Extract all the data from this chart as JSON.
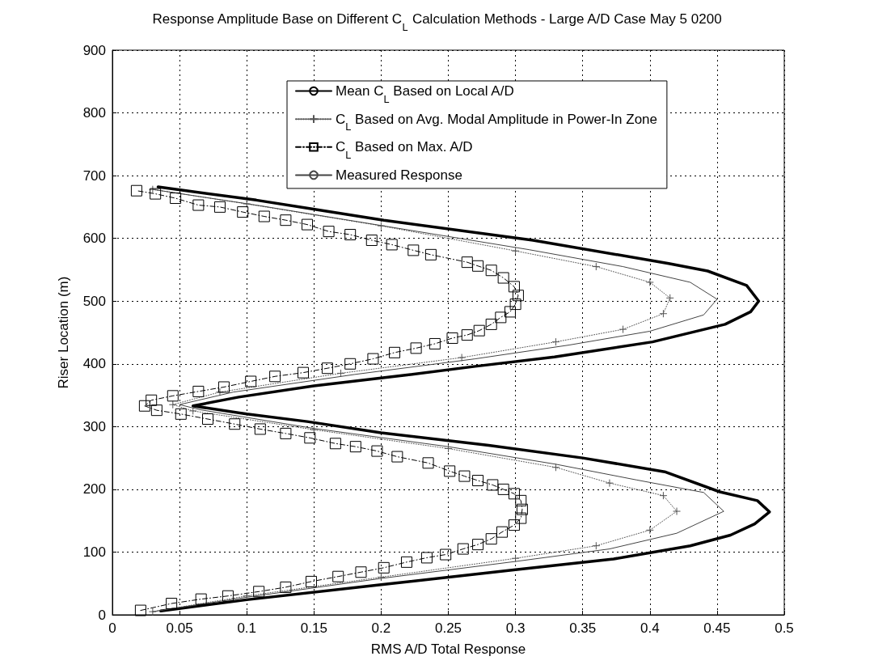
{
  "chart_data": {
    "type": "line",
    "title": "Response Amplitude Base on Different C$_{L}$ Calculation Methods - Large A/D Case May 5 0200",
    "xlabel": "RMS A/D Total Response",
    "ylabel": "Riser Location (m)",
    "xlim": [
      0,
      0.5
    ],
    "xticks": [
      0,
      0.05,
      0.1,
      0.15,
      0.2,
      0.25,
      0.3,
      0.35,
      0.4,
      0.45,
      0.5
    ],
    "ylim": [
      0,
      900
    ],
    "yticks": [
      0,
      100,
      200,
      300,
      400,
      500,
      600,
      700,
      800,
      900
    ],
    "grid": true,
    "legend": "top",
    "series": [
      {
        "name": "Mean C$_{L}$ Based on Local A/D",
        "color": "#000000",
        "marker": "none",
        "line_style": "solid",
        "x": [
          0.036,
          0.1,
          0.2,
          0.3,
          0.373,
          0.43,
          0.46,
          0.478,
          0.489,
          0.48,
          0.452,
          0.411,
          0.35,
          0.28,
          0.2,
          0.145,
          0.1,
          0.06,
          0.094,
          0.15,
          0.218,
          0.27,
          0.329,
          0.402,
          0.456,
          0.475,
          0.481,
          0.472,
          0.443,
          0.414,
          0.313,
          0.202,
          0.107,
          0.034
        ],
        "values": [
          6,
          24,
          48,
          72,
          89,
          110,
          127,
          145,
          164,
          182,
          196,
          228,
          250,
          270,
          290,
          308,
          320,
          333,
          347,
          365,
          382,
          396,
          411,
          435,
          463,
          483,
          500,
          525,
          548,
          560,
          597,
          629,
          661,
          682
        ]
      },
      {
        "name": "C$_{L}$ Based on Avg. Modal Amplitude in Power-In Zone",
        "color": "#555555",
        "marker": "cross",
        "line_style": "dotted",
        "x": [
          0.03,
          0.1,
          0.2,
          0.3,
          0.36,
          0.4,
          0.42,
          0.41,
          0.37,
          0.33,
          0.25,
          0.15,
          0.06,
          0.045,
          0.08,
          0.17,
          0.26,
          0.33,
          0.38,
          0.41,
          0.415,
          0.4,
          0.36,
          0.3,
          0.2,
          0.1,
          0.03
        ],
        "values": [
          5,
          30,
          60,
          90,
          110,
          135,
          165,
          190,
          210,
          235,
          265,
          295,
          325,
          335,
          355,
          385,
          410,
          435,
          455,
          480,
          505,
          530,
          555,
          580,
          620,
          655,
          678
        ]
      },
      {
        "name": "C$_{L}$ Based on Max. A/D",
        "color": "#000000",
        "marker": "square",
        "line_style": "dashed",
        "x": [
          0.021,
          0.044,
          0.066,
          0.086,
          0.109,
          0.129,
          0.148,
          0.168,
          0.185,
          0.202,
          0.219,
          0.234,
          0.248,
          0.261,
          0.272,
          0.282,
          0.29,
          0.299,
          0.304,
          0.305,
          0.304,
          0.299,
          0.291,
          0.283,
          0.272,
          0.262,
          0.251,
          0.235,
          0.212,
          0.197,
          0.181,
          0.166,
          0.147,
          0.129,
          0.11,
          0.091,
          0.071,
          0.051,
          0.033,
          0.024,
          0.029,
          0.045,
          0.064,
          0.083,
          0.103,
          0.121,
          0.142,
          0.16,
          0.177,
          0.194,
          0.21,
          0.226,
          0.24,
          0.253,
          0.264,
          0.273,
          0.282,
          0.289,
          0.296,
          0.3,
          0.302,
          0.299,
          0.291,
          0.282,
          0.272,
          0.264,
          0.237,
          0.224,
          0.208,
          0.193,
          0.177,
          0.161,
          0.145,
          0.129,
          0.113,
          0.097,
          0.08,
          0.064,
          0.047,
          0.032,
          0.018
        ],
        "values": [
          7,
          18,
          25,
          30,
          37,
          44,
          53,
          61,
          68,
          75,
          84,
          91,
          96,
          105,
          112,
          121,
          132,
          143,
          154,
          168,
          182,
          193,
          200,
          207,
          214,
          221,
          229,
          242,
          252,
          261,
          268,
          273,
          282,
          289,
          296,
          304,
          312,
          320,
          326,
          333,
          342,
          349,
          356,
          363,
          372,
          380,
          386,
          393,
          400,
          408,
          418,
          425,
          432,
          441,
          446,
          453,
          463,
          474,
          483,
          495,
          509,
          523,
          537,
          549,
          556,
          562,
          574,
          581,
          590,
          597,
          606,
          611,
          622,
          629,
          635,
          642,
          650,
          653,
          664,
          671,
          676
        ]
      },
      {
        "name": "Measured Response",
        "color": "#444444",
        "marker": "none",
        "line_style": "solid",
        "x": [
          0.03,
          0.1,
          0.2,
          0.3,
          0.37,
          0.42,
          0.455,
          0.44,
          0.39,
          0.33,
          0.25,
          0.15,
          0.065,
          0.05,
          0.09,
          0.18,
          0.27,
          0.34,
          0.4,
          0.44,
          0.45,
          0.43,
          0.38,
          0.31,
          0.21,
          0.11,
          0.03
        ],
        "values": [
          5,
          28,
          58,
          85,
          105,
          130,
          165,
          195,
          215,
          240,
          268,
          297,
          327,
          335,
          355,
          383,
          408,
          430,
          452,
          478,
          503,
          530,
          555,
          582,
          617,
          652,
          678
        ]
      }
    ]
  }
}
